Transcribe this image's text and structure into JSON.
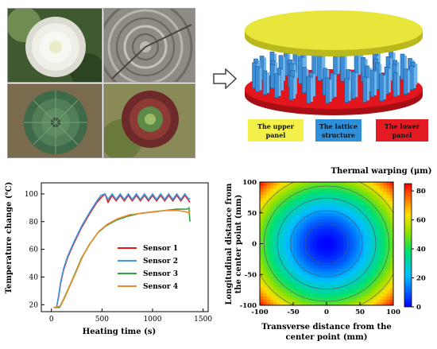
{
  "figure": {
    "structure": {
      "labels": [
        {
          "text": "The upper panel",
          "lines": [
            "The upper",
            "panel"
          ],
          "color": "#f3f04a"
        },
        {
          "text": "The lattice structure",
          "lines": [
            "The lattice",
            "structure"
          ],
          "color": "#2f8fd8"
        },
        {
          "text": "The lower panel",
          "lines": [
            "The lower",
            "panel"
          ],
          "color": "#e31b23"
        }
      ],
      "colors": {
        "upper": "#e8e63a",
        "lattice": "#3d8ed6",
        "lower": "#e3161e"
      }
    },
    "photos": [
      "chrysanthemum",
      "tree-rings",
      "rosette-plant",
      "succulent"
    ]
  },
  "chart_data": [
    {
      "type": "line",
      "xlabel": "Heating time (s)",
      "ylabel": "Temperature change (℃)",
      "xlim": [
        -100,
        1550
      ],
      "ylim": [
        15,
        108
      ],
      "xticks": [
        0,
        500,
        1000,
        1500
      ],
      "yticks": [
        20,
        40,
        60,
        80,
        100
      ],
      "legend_position": "center-right",
      "series": [
        {
          "name": "Sensor 1",
          "color": "#e3161e",
          "points": [
            [
              50,
              18
            ],
            [
              70,
              25
            ],
            [
              90,
              35
            ],
            [
              120,
              45
            ],
            [
              160,
              54
            ],
            [
              220,
              64
            ],
            [
              300,
              76
            ],
            [
              380,
              86
            ],
            [
              450,
              94
            ],
            [
              500,
              98
            ],
            [
              530,
              100
            ],
            [
              560,
              94
            ],
            [
              600,
              99
            ],
            [
              640,
              95
            ],
            [
              680,
              99
            ],
            [
              720,
              95
            ],
            [
              760,
              99
            ],
            [
              800,
              95
            ],
            [
              840,
              99
            ],
            [
              880,
              95
            ],
            [
              920,
              99
            ],
            [
              960,
              95
            ],
            [
              1000,
              99
            ],
            [
              1040,
              95
            ],
            [
              1080,
              99
            ],
            [
              1120,
              95
            ],
            [
              1160,
              99
            ],
            [
              1200,
              95
            ],
            [
              1240,
              99
            ],
            [
              1280,
              95
            ],
            [
              1320,
              99
            ],
            [
              1360,
              95
            ],
            [
              1370,
              94
            ]
          ]
        },
        {
          "name": "Sensor 2",
          "color": "#3b9be0",
          "points": [
            [
              50,
              18
            ],
            [
              70,
              26
            ],
            [
              90,
              36
            ],
            [
              120,
              46
            ],
            [
              160,
              55
            ],
            [
              220,
              65
            ],
            [
              300,
              77
            ],
            [
              380,
              87
            ],
            [
              450,
              95
            ],
            [
              490,
              99
            ],
            [
              530,
              100
            ],
            [
              560,
              96
            ],
            [
              600,
              100
            ],
            [
              640,
              96
            ],
            [
              680,
              100
            ],
            [
              720,
              96
            ],
            [
              760,
              100
            ],
            [
              800,
              96
            ],
            [
              840,
              100
            ],
            [
              880,
              96
            ],
            [
              920,
              100
            ],
            [
              960,
              96
            ],
            [
              1000,
              100
            ],
            [
              1040,
              96
            ],
            [
              1080,
              100
            ],
            [
              1120,
              96
            ],
            [
              1160,
              100
            ],
            [
              1200,
              96
            ],
            [
              1240,
              100
            ],
            [
              1280,
              96
            ],
            [
              1320,
              100
            ],
            [
              1360,
              96
            ],
            [
              1370,
              97
            ]
          ]
        },
        {
          "name": "Sensor 3",
          "color": "#2aa640",
          "points": [
            [
              20,
              18
            ],
            [
              80,
              18
            ],
            [
              120,
              24
            ],
            [
              170,
              32
            ],
            [
              230,
              42
            ],
            [
              300,
              54
            ],
            [
              380,
              64
            ],
            [
              460,
              72
            ],
            [
              540,
              77
            ],
            [
              640,
              81
            ],
            [
              760,
              84
            ],
            [
              880,
              86
            ],
            [
              1000,
              87
            ],
            [
              1120,
              88
            ],
            [
              1240,
              89
            ],
            [
              1340,
              89
            ],
            [
              1360,
              90
            ],
            [
              1370,
              80
            ]
          ]
        },
        {
          "name": "Sensor 4",
          "color": "#f0882a",
          "points": [
            [
              20,
              18
            ],
            [
              90,
              19
            ],
            [
              130,
              25
            ],
            [
              180,
              33
            ],
            [
              240,
              43
            ],
            [
              310,
              55
            ],
            [
              390,
              65
            ],
            [
              470,
              73
            ],
            [
              550,
              78
            ],
            [
              650,
              82
            ],
            [
              770,
              85
            ],
            [
              890,
              86
            ],
            [
              1010,
              87
            ],
            [
              1130,
              88
            ],
            [
              1250,
              88
            ],
            [
              1340,
              87
            ],
            [
              1360,
              86
            ],
            [
              1370,
              88
            ]
          ]
        }
      ]
    },
    {
      "type": "heatmap",
      "title": "Thermal warping (μm)",
      "xlabel": "Transverse distance from the center point (mm)",
      "ylabel": "Longitudinal distance from the center point (mm)",
      "xlim": [
        -100,
        100
      ],
      "ylim": [
        -100,
        100
      ],
      "xticks": [
        -100,
        -50,
        0,
        50,
        100
      ],
      "yticks": [
        -100,
        -50,
        0,
        50,
        100
      ],
      "colorbar": {
        "min": 0,
        "max": 85,
        "ticks": [
          0,
          20,
          40,
          60,
          80
        ]
      },
      "center_value": 0,
      "corner_value": 85,
      "contour_levels": [
        8,
        18,
        30,
        44,
        58
      ]
    }
  ]
}
